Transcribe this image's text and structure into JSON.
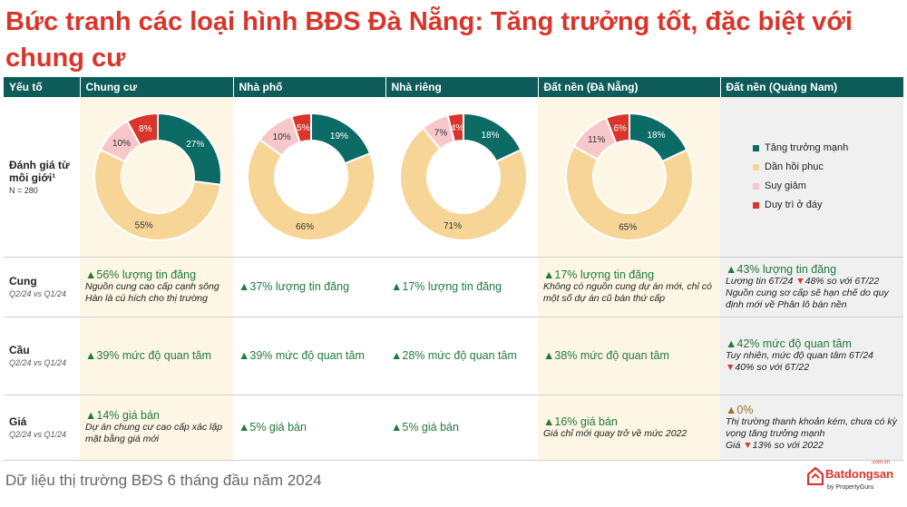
{
  "title": "Bức tranh các loại hình BĐS Đà Nẵng: Tăng trưởng tốt, đặc biệt với chung cư",
  "headers": [
    "Yếu tố",
    "Chung cư",
    "Nhà phố",
    "Nhà riêng",
    "Đất nền (Đà Nẵng)",
    "Đất nền (Quảng Nam)"
  ],
  "rows": {
    "rating": {
      "label": "Đánh giá từ môi giới¹",
      "sub": "N = 280"
    },
    "supply": {
      "label": "Cung",
      "sub": "Q2/24 vs Q1/24",
      "cells": [
        {
          "arrow": "▲",
          "metric": "56% lượng tin đăng",
          "note": "Nguồn cung cao cấp cạnh sông Hàn là cú hích cho thị trường"
        },
        {
          "arrow": "▲",
          "metric": "37% lượng tin đăng"
        },
        {
          "arrow": "▲",
          "metric": "17% lượng tin đăng"
        },
        {
          "arrow": "▲",
          "metric": "17% lượng tin đăng",
          "note": "Không có nguồn cung dự án mới, chỉ có một số dự án cũ bán thứ cấp"
        },
        {
          "arrow": "▲",
          "metric": "43% lượng tin đăng",
          "note_a": "Lượng tin 6T/24",
          "arrow_b": "▼",
          "note_b": "48% so với 6T/22",
          "note": "Nguồn cung sơ cấp sẽ hạn chế do quy định mới về Phân lô bán nền"
        }
      ]
    },
    "demand": {
      "label": "Cầu",
      "sub": "Q2/24 vs Q1/24",
      "cells": [
        {
          "arrow": "▲",
          "metric": "39% mức độ quan tâm"
        },
        {
          "arrow": "▲",
          "metric": "39% mức độ quan tâm"
        },
        {
          "arrow": "▲",
          "metric": "28% mức độ quan tâm"
        },
        {
          "arrow": "▲",
          "metric": "38% mức độ quan tâm"
        },
        {
          "arrow": "▲",
          "metric": "42% mức độ quan tâm",
          "note": "Tuy nhiên, mức độ quan tâm 6T/24",
          "arrow_b": "▼",
          "note_b": "40% so với 6T/22"
        }
      ]
    },
    "price": {
      "label": "Giá",
      "sub": "Q2/24 vs Q1/24",
      "cells": [
        {
          "arrow": "▲",
          "metric": "14% giá bán",
          "note": "Dự án chung cư cao cấp xác lập mặt bằng giá mới"
        },
        {
          "arrow": "▲",
          "metric": "5% giá bán"
        },
        {
          "arrow": "▲",
          "metric": "5% giá bán"
        },
        {
          "arrow": "▲",
          "metric": "16% giá bán",
          "note": "Giá chỉ mới quay trở về mức 2022"
        },
        {
          "arrow": "▲",
          "metric": "0%",
          "note": "Thị trường thanh khoản kém, chưa có kỳ vọng tăng trưởng mạnh",
          "note_a": "Giá",
          "arrow_b": "▼",
          "note_b": "13% so với 2022"
        }
      ]
    }
  },
  "chart_data": [
    {
      "type": "pie",
      "name": "Chung cư",
      "categories": [
        "Tăng trưởng mạnh",
        "Dần hồi phục",
        "Suy giảm",
        "Duy trì ở đáy"
      ],
      "values": [
        27,
        55,
        10,
        8
      ]
    },
    {
      "type": "pie",
      "name": "Nhà phố",
      "categories": [
        "Tăng trưởng mạnh",
        "Dần hồi phục",
        "Suy giảm",
        "Duy trì ở đáy"
      ],
      "values": [
        19,
        66,
        10,
        5
      ]
    },
    {
      "type": "pie",
      "name": "Nhà riêng",
      "categories": [
        "Tăng trưởng mạnh",
        "Dần hồi phục",
        "Suy giảm",
        "Duy trì ở đáy"
      ],
      "values": [
        18,
        71,
        7,
        4
      ]
    },
    {
      "type": "pie",
      "name": "Đất nền (Đà Nẵng)",
      "categories": [
        "Tăng trưởng mạnh",
        "Dần hồi phục",
        "Suy giảm",
        "Duy trì ở đáy"
      ],
      "values": [
        18,
        65,
        11,
        6
      ]
    }
  ],
  "legend": [
    {
      "label": "Tăng trưởng mạnh",
      "color": "#0d6b66"
    },
    {
      "label": "Dần hồi phục",
      "color": "#f7d597"
    },
    {
      "label": "Suy giảm",
      "color": "#f7c7c9"
    },
    {
      "label": "Duy trì ở đáy",
      "color": "#d9352b"
    }
  ],
  "footer": "Dữ liệu thị trường BĐS 6 tháng đầu năm 2024",
  "logo": {
    "main": "Batdongsan",
    "sub": "by PropertyGuru",
    "com": ".com.vn"
  }
}
